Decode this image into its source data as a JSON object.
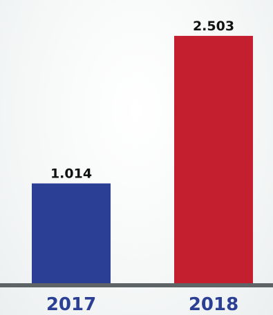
{
  "chart_data": {
    "type": "bar",
    "categories": [
      "2017",
      "2018"
    ],
    "values": [
      1.014,
      2.503
    ],
    "value_labels": [
      "1.014",
      "2.503"
    ],
    "colors": [
      "#2b3f94",
      "#c41f2f"
    ],
    "tick_label_colors": [
      "#2b3f94",
      "#2b3f94"
    ],
    "axis_color": "#5e6366",
    "title": "",
    "xlabel": "",
    "ylabel": "",
    "ylim": [
      0,
      2.6
    ],
    "grid": false,
    "legend": "none"
  }
}
